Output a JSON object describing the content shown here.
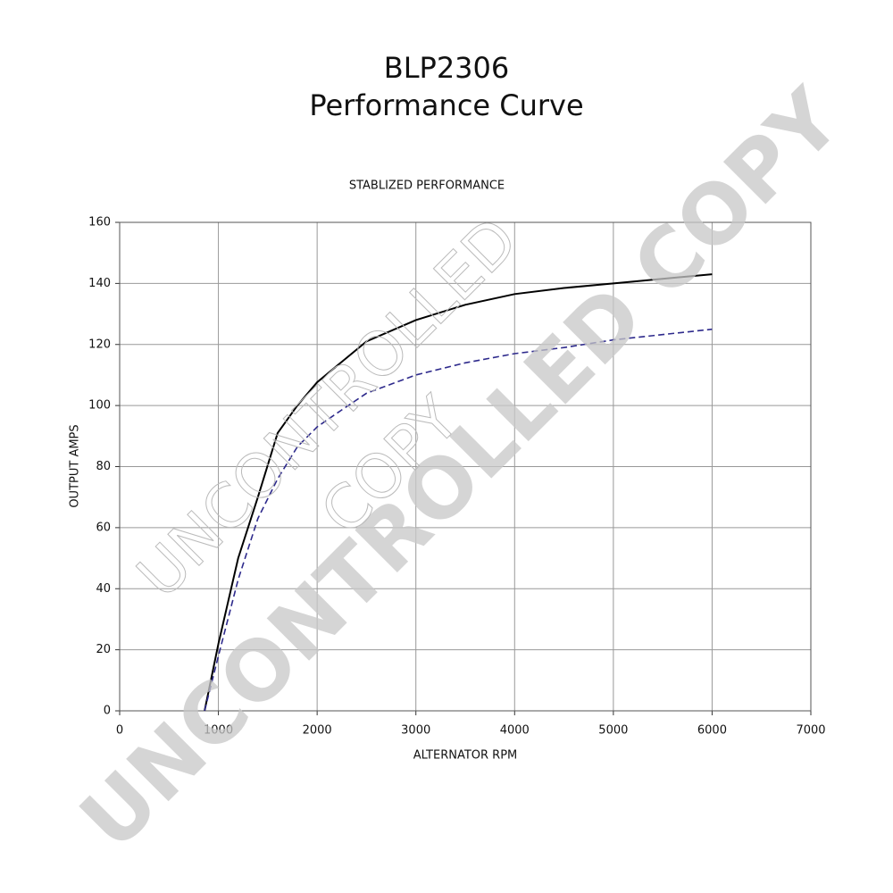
{
  "chart_data": {
    "type": "line",
    "title": [
      "BLP2306",
      "Performance Curve"
    ],
    "subtitle": "STABLIZED PERFORMANCE",
    "xlabel": "ALTERNATOR RPM",
    "ylabel": "OUTPUT AMPS",
    "x": [
      860,
      1000,
      1200,
      1400,
      1600,
      1800,
      2000,
      2200,
      2500,
      3000,
      3500,
      4000,
      4500,
      5000,
      6000
    ],
    "series": [
      {
        "color": "#000000",
        "style": "solid",
        "values": [
          0,
          22,
          50,
          70,
          91,
          100,
          107.6,
          113,
          121,
          128,
          133,
          136.5,
          138.5,
          140,
          143
        ]
      },
      {
        "color": "#2e2a8c",
        "style": "dashed",
        "values": [
          0,
          18,
          43,
          63,
          76,
          86.5,
          93,
          97.5,
          104,
          110,
          114,
          117,
          119,
          121.5,
          125
        ]
      }
    ],
    "xlim": [
      0,
      7000
    ],
    "xticks": [
      0,
      1000,
      2000,
      3000,
      4000,
      5000,
      6000,
      7000
    ],
    "ylim": [
      0,
      160
    ],
    "yticks": [
      0,
      20,
      40,
      60,
      80,
      100,
      120,
      140,
      160
    ],
    "grid": true,
    "watermarks": [
      "UNCONTROLLED COPY",
      "UNCONTROLLED",
      "COPY"
    ]
  }
}
